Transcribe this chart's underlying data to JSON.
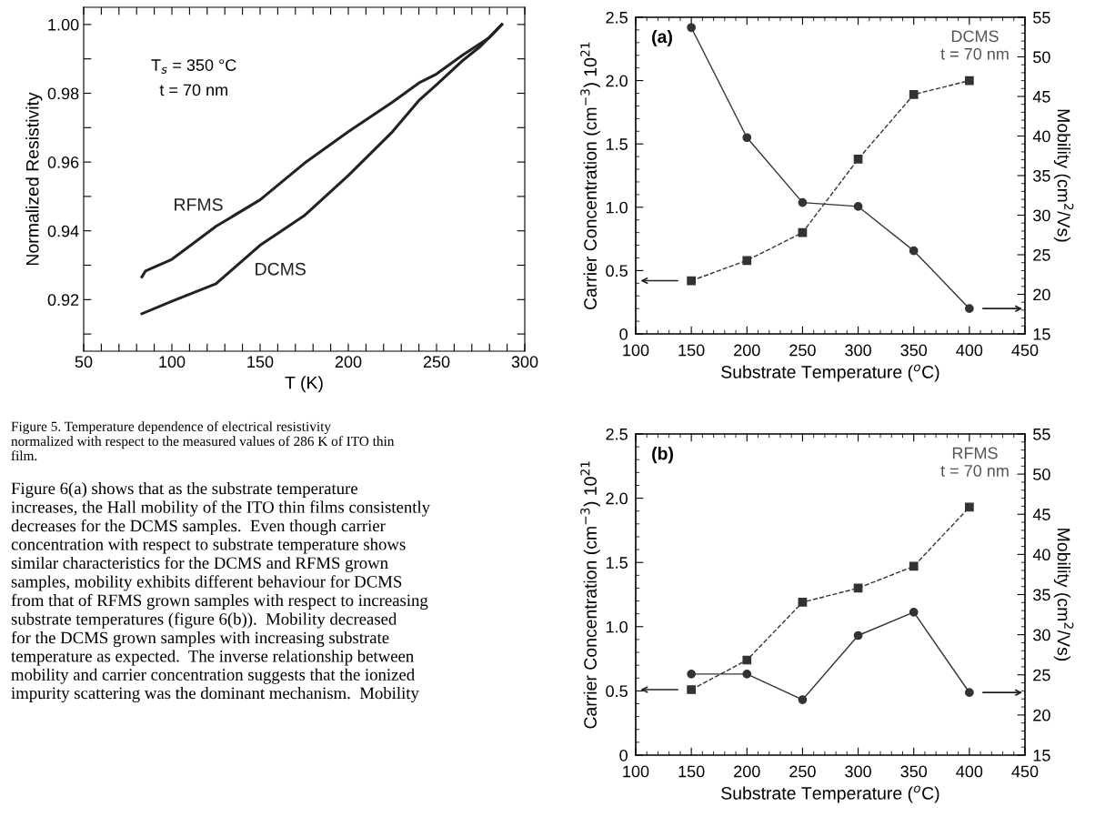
{
  "chart_data": [
    {
      "type": "line",
      "xlabel": "T (K)",
      "ylabel": "Normalized Resistivity",
      "xlim": [
        50,
        300
      ],
      "ylim": [
        0.905,
        1.005
      ],
      "xticks": [
        50,
        {
          "value": 60,
          "label": null
        },
        {
          "value": 70,
          "label": null
        },
        {
          "value": 80,
          "label": null
        },
        {
          "value": 90,
          "label": null
        },
        100,
        {
          "value": 110,
          "label": null
        },
        {
          "value": 120,
          "label": null
        },
        {
          "value": 130,
          "label": null
        },
        {
          "value": 140,
          "label": null
        },
        150,
        {
          "value": 160,
          "label": null
        },
        {
          "value": 170,
          "label": null
        },
        {
          "value": 180,
          "label": null
        },
        {
          "value": 190,
          "label": null
        },
        200,
        {
          "value": 210,
          "label": null
        },
        {
          "value": 220,
          "label": null
        },
        {
          "value": 230,
          "label": null
        },
        {
          "value": 240,
          "label": null
        },
        250,
        {
          "value": 260,
          "label": null
        },
        {
          "value": 270,
          "label": null
        },
        {
          "value": 280,
          "label": null
        },
        {
          "value": 290,
          "label": null
        },
        300
      ],
      "yticks": [
        {
          "value": 0.91,
          "label": null
        },
        {
          "value": 0.92,
          "label": "0.92"
        },
        {
          "value": 0.93,
          "label": null
        },
        {
          "value": 0.94,
          "label": "0.94"
        },
        {
          "value": 0.95,
          "label": null
        },
        {
          "value": 0.96,
          "label": "0.96"
        },
        {
          "value": 0.97,
          "label": null
        },
        {
          "value": 0.98,
          "label": "0.98"
        },
        {
          "value": 0.99,
          "label": null
        },
        {
          "value": 1.0,
          "label": "1.00"
        }
      ],
      "series": [
        {
          "name": "RFMS",
          "color": "#222222",
          "x": [
            83,
            85,
            100,
            125,
            150,
            175,
            200,
            225,
            240,
            250,
            265,
            280,
            287
          ],
          "values": [
            0.9266,
            0.9283,
            0.9317,
            0.9413,
            0.949,
            0.9596,
            0.9688,
            0.9774,
            0.983,
            0.9856,
            0.9912,
            0.9962,
            1.0
          ]
        },
        {
          "name": "DCMS",
          "color": "#222222",
          "x": [
            83,
            100,
            125,
            150,
            175,
            200,
            225,
            240,
            250,
            265,
            275,
            287
          ],
          "values": [
            0.9159,
            0.9195,
            0.9246,
            0.9358,
            0.9444,
            0.9561,
            0.9688,
            0.9779,
            0.9825,
            0.9896,
            0.9937,
            1.0
          ]
        }
      ],
      "annotations": [
        "T$_{s}$ = 350 °C\nt = 70 nm",
        "Figure 5. Temperature dependence of electrical resistivity\nnormalized with respect to the measured values of 286 K of ITO thin\nfilm.",
        "Figure 6(a) shows that as the substrate temperature\nincreases, the Hall mobility of the ITO thin films consistently\ndecreases for the DCMS samples.  Even though carrier\nconcentration with respect to substrate temperature shows\nsimilar characteristics for the DCMS and RFMS grown\nsamples, mobility exhibits different behaviour for DCMS\nfrom that of RFMS grown samples with respect to increasing\nsubstrate temperatures (figure 6(b)).  Mobility decreased\nfor the DCMS grown samples with increasing substrate\ntemperature as expected.  The inverse relationship between\nmobility and carrier concentration suggests that the ionized\nimpurity scattering was the dominant mechanism.  Mobility"
      ]
    },
    {
      "type": "line",
      "xlabel": "Substrate Temperature ($^{o}$C)",
      "ylabel": "Carrier Concentration (cm$^{−3}$) 10$^{21}$",
      "y2label": "Mobility (cm$^{2}$/Vs)",
      "xlim": [
        100,
        450
      ],
      "ylim": [
        0,
        2.5
      ],
      "y2lim": [
        15,
        55
      ],
      "xticks": [
        100,
        150,
        200,
        250,
        300,
        350,
        400,
        450
      ],
      "yticks": [
        0,
        {
          "value": 0.5,
          "label": "0.5"
        },
        {
          "value": 1,
          "label": "1.0"
        },
        {
          "value": 1.5,
          "label": "1.5"
        },
        {
          "value": 2,
          "label": "2.0"
        },
        {
          "value": 2.5,
          "label": "2.5"
        }
      ],
      "y2ticks": [
        15,
        20,
        25,
        30,
        35,
        40,
        45,
        50,
        55
      ],
      "series": [
        {
          "color": "#333333",
          "x": [
            150,
            200,
            250,
            300,
            350,
            400
          ],
          "values": [
            0.42,
            0.58,
            0.8,
            1.38,
            1.89,
            2.0
          ],
          "marker": "square",
          "line_style": "dashed"
        },
        {
          "color": "#333333",
          "x": [
            150,
            200,
            250,
            300,
            350,
            400
          ],
          "values": [
            53.7,
            39.8,
            31.6,
            31.1,
            25.5,
            18.2
          ],
          "axis": "y2",
          "marker": "circle",
          "line_style": "solid"
        }
      ],
      "annotations": [
        "(a)",
        "DCMS\nt = 70 nm"
      ]
    },
    {
      "type": "line",
      "xlabel": "Substrate Temperature ($^{o}$C)",
      "ylabel": "Carrier Concentration (cm$^{−3}$) 10$^{21}$",
      "y2label": "Mobility (cm$^{2}$/Vs)",
      "xlim": [
        100,
        450
      ],
      "ylim": [
        0,
        2.5
      ],
      "y2lim": [
        15,
        55
      ],
      "xticks": [
        100,
        150,
        200,
        250,
        300,
        350,
        400,
        450
      ],
      "yticks": [
        0,
        {
          "value": 0.5,
          "label": "0.5"
        },
        {
          "value": 1,
          "label": "1.0"
        },
        {
          "value": 1.5,
          "label": "1.5"
        },
        {
          "value": 2,
          "label": "2.0"
        },
        {
          "value": 2.5,
          "label": "2.5"
        }
      ],
      "y2ticks": [
        15,
        20,
        25,
        30,
        35,
        40,
        45,
        50,
        55
      ],
      "series": [
        {
          "color": "#333333",
          "x": [
            150,
            200,
            250,
            300,
            350,
            400
          ],
          "values": [
            0.51,
            0.74,
            1.19,
            1.3,
            1.47,
            1.93
          ],
          "marker": "square",
          "line_style": "dashed"
        },
        {
          "color": "#333333",
          "x": [
            150,
            200,
            250,
            300,
            350,
            400
          ],
          "values": [
            25.1,
            25.1,
            21.9,
            29.9,
            32.8,
            22.8
          ],
          "axis": "y2",
          "marker": "circle",
          "line_style": "solid"
        }
      ],
      "annotations": [
        "(b)",
        "RFMS\nt = 70 nm"
      ]
    }
  ]
}
